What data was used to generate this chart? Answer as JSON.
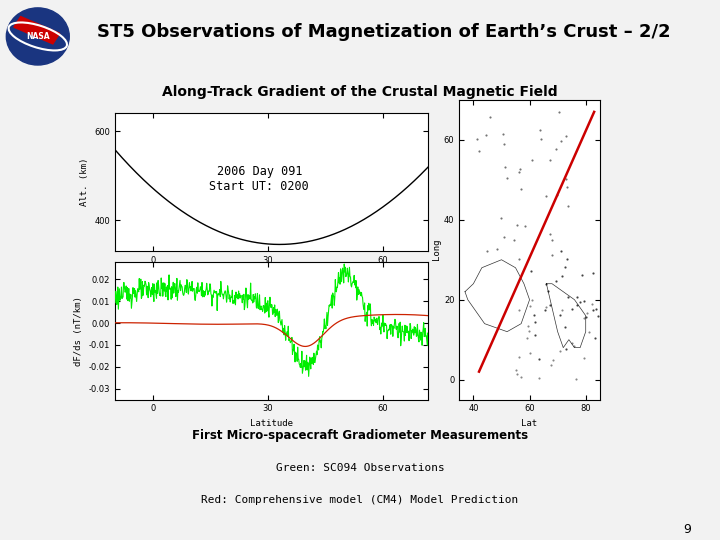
{
  "title": "ST5 Observations of Magnetization of Earth’s Crust – 2/2",
  "subtitle": "Along-Track Gradient of the Crustal Magnetic Field",
  "header_line_color": "#800080",
  "background_color": "#f0f0f0",
  "top_plot": {
    "xlabel": "Latitude",
    "ylabel": "Alt. (km)",
    "annotation": "2006 Day 091\nStart UT: 0200",
    "x_ticks": [
      0,
      30,
      60
    ],
    "y_ticks": [
      400,
      600
    ],
    "xlim": [
      -10,
      72
    ],
    "ylim": [
      330,
      640
    ],
    "curve_color": "#000000"
  },
  "bottom_plot": {
    "xlabel": "Latitude",
    "ylabel": "dF/ds (nT/km)",
    "x_ticks": [
      0,
      30,
      60
    ],
    "y_ticks": [
      -0.03,
      -0.02,
      -0.01,
      0.0,
      0.01,
      0.02
    ],
    "xlim": [
      -10,
      72
    ],
    "ylim": [
      -0.035,
      0.028
    ],
    "green_color": "#00ee00",
    "red_color": "#cc2200"
  },
  "map_plot": {
    "x_ticks": [
      40,
      60,
      80
    ],
    "y_ticks": [
      0,
      20,
      40,
      60
    ],
    "xlabel": "Lat",
    "ylabel": "Long",
    "xlim": [
      35,
      85
    ],
    "ylim": [
      -5,
      70
    ],
    "track_color": "#cc0000"
  },
  "caption_bold": "First Micro-spacecraft Gradiometer Measurements",
  "caption_line2": "Green: SC094 Observations",
  "caption_line3": "Red: Comprehensive model (CM4) Model Prediction",
  "page_number": "9"
}
